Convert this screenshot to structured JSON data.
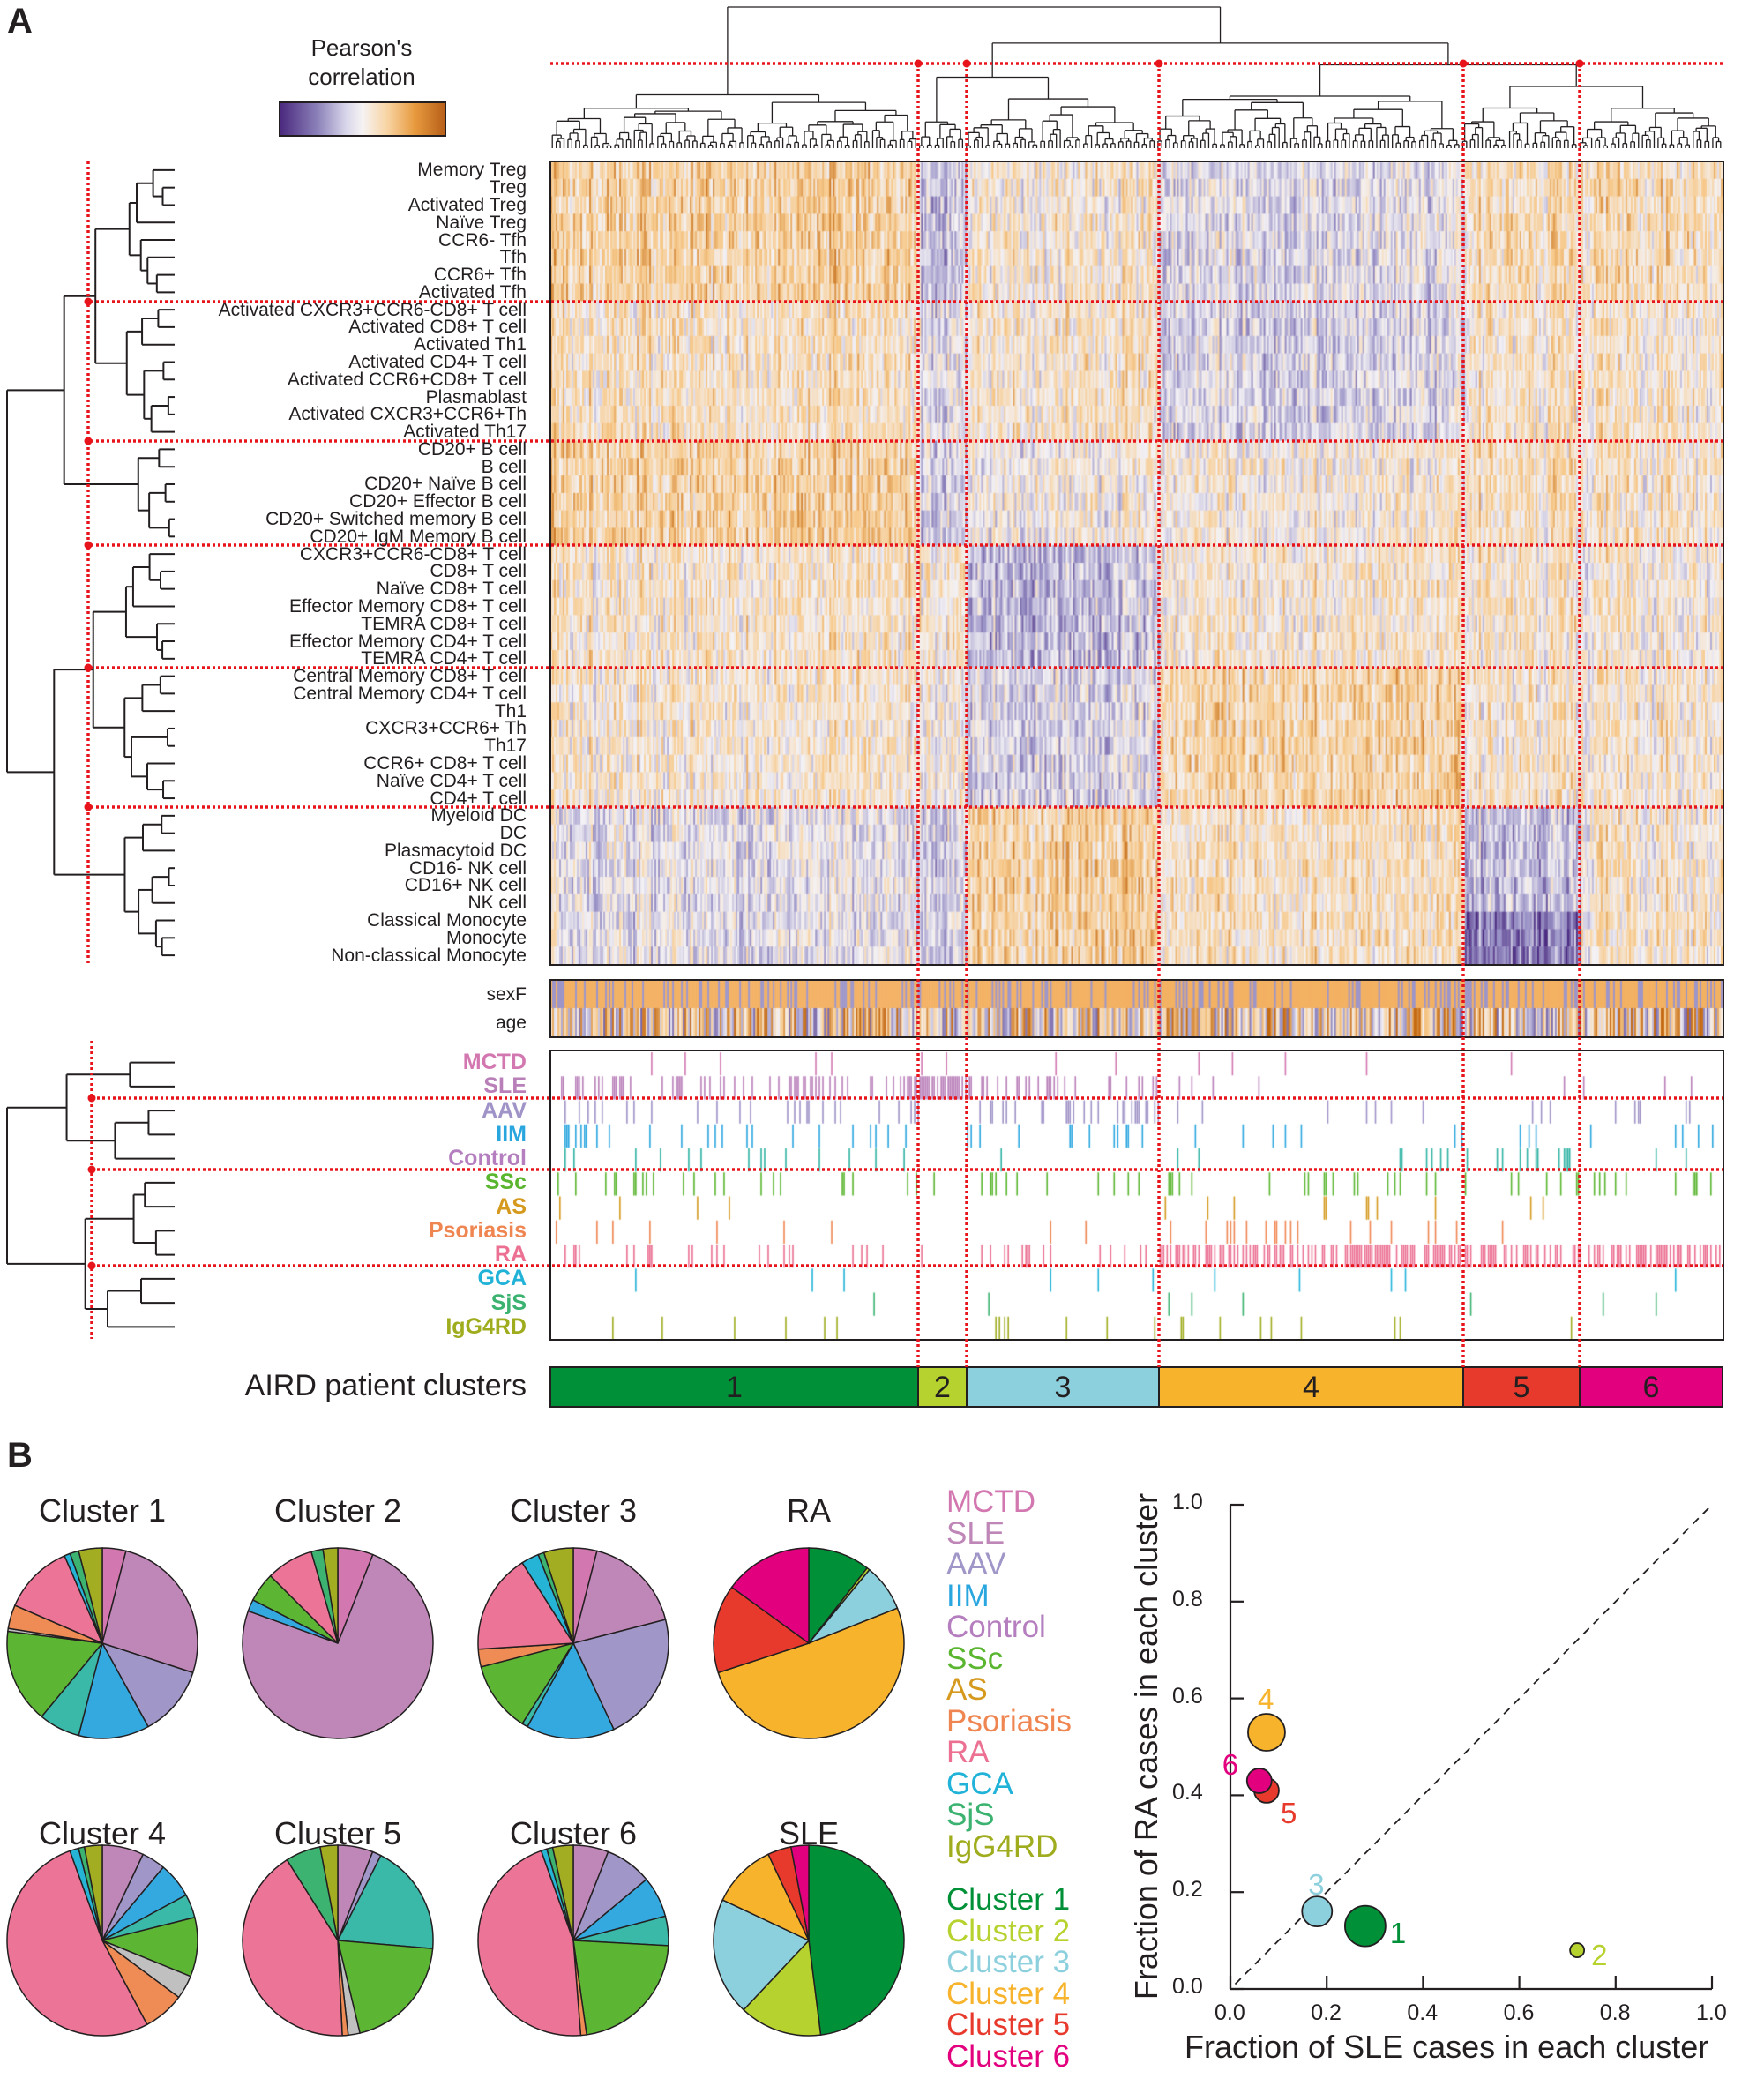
{
  "panel_a": {
    "letter": "A",
    "colorbar_title_line1": "Pearson's",
    "colorbar_title_line2": "correlation",
    "row_labels": [
      "Memory Treg",
      "Treg",
      "Activated Treg",
      "Naïve Treg",
      "CCR6- Tfh",
      "Tfh",
      "CCR6+ Tfh",
      "Activated Tfh",
      "Activated CXCR3+CCR6-CD8+ T cell",
      "Activated CD8+ T cell",
      "Activated Th1",
      "Activated CD4+ T cell",
      "Activated CCR6+CD8+ T cell",
      "Plasmablast",
      "Activated CXCR3+CCR6+Th",
      "Activated Th17",
      "CD20+ B cell",
      "B cell",
      "CD20+ Naïve B cell",
      "CD20+ Effector B cell",
      "CD20+ Switched memory B cell",
      "CD20+ IgM Memory B cell",
      "CXCR3+CCR6-CD8+ T cell",
      "CD8+ T cell",
      "Naïve CD8+ T cell",
      "Effector Memory CD8+ T cell",
      "TEMRA CD8+ T cell",
      "Effector Memory CD4+ T cell",
      "TEMRA CD4+ T cell",
      "Central Memory CD8+ T cell",
      "Central Memory CD4+ T cell",
      "Th1",
      "CXCR3+CCR6+ Th",
      "Th17",
      "CCR6+ CD8+ T cell",
      "Naïve CD4+ T cell",
      "CD4+ T cell",
      "Myeloid DC",
      "DC",
      "Plasmacytoid DC",
      "CD16- NK cell",
      "CD16+ NK cell",
      "NK cell",
      "Classical Monocyte",
      "Monocyte",
      "Non-classical Monocyte"
    ],
    "covariates": [
      "sexF",
      "age"
    ],
    "diseases": [
      {
        "label": "MCTD",
        "color": "#d277b0",
        "tick_color": "#d277b0"
      },
      {
        "label": "SLE",
        "color": "#b97fb9",
        "tick_color": "#b97fb9"
      },
      {
        "label": "AAV",
        "color": "#9f93c7",
        "tick_color": "#9f93c7"
      },
      {
        "label": "IIM",
        "color": "#2aa6df",
        "tick_color": "#2aa6df"
      },
      {
        "label": "Control",
        "color": "#b57fbf",
        "tick_color": "#2fb3a3"
      },
      {
        "label": "SSc",
        "color": "#5ab52f",
        "tick_color": "#5ab52f"
      },
      {
        "label": "AS",
        "color": "#d4991d",
        "tick_color": "#d4991d"
      },
      {
        "label": "Psoriasis",
        "color": "#ef8551",
        "tick_color": "#ef8551"
      },
      {
        "label": "RA",
        "color": "#eb7092",
        "tick_color": "#eb7092"
      },
      {
        "label": "GCA",
        "color": "#21b2d8",
        "tick_color": "#21b2d8"
      },
      {
        "label": "SjS",
        "color": "#3bb270",
        "tick_color": "#3bb270"
      },
      {
        "label": "IgG4RD",
        "color": "#9fac1e",
        "tick_color": "#9fac1e"
      }
    ],
    "cluster_bar_label": "AIRD patient clusters",
    "clusters": [
      {
        "label": "1",
        "color": "#009037"
      },
      {
        "label": "2",
        "color": "#b6d22e"
      },
      {
        "label": "3",
        "color": "#8dd0dd"
      },
      {
        "label": "4",
        "color": "#f7b32b"
      },
      {
        "label": "5",
        "color": "#e73a2c"
      },
      {
        "label": "6",
        "color": "#e2007e"
      }
    ],
    "cut_line_color": "#e8141b",
    "colorscale": [
      "#4b2a7f",
      "#9c95c8",
      "#f4f2f5",
      "#f7c98a",
      "#c46a14"
    ]
  },
  "panel_b": {
    "letter": "B",
    "pie_colors": [
      "#d277b0",
      "#bf86b8",
      "#a096c8",
      "#33a9e0",
      "#3ab8a8",
      "#5db534",
      "#c0c0c0",
      "#ef8c55",
      "#ec7597",
      "#26b4d6",
      "#3cb371",
      "#a3ad22"
    ],
    "legend_diseases": [
      {
        "label": "MCTD",
        "color": "#d277b0"
      },
      {
        "label": "SLE",
        "color": "#bf86b8"
      },
      {
        "label": "AAV",
        "color": "#a096c8"
      },
      {
        "label": "IIM",
        "color": "#2aa6df"
      },
      {
        "label": "Control",
        "color": "#b57fbf"
      },
      {
        "label": "SSc",
        "color": "#5ab52f"
      },
      {
        "label": "AS",
        "color": "#d4991d"
      },
      {
        "label": "Psoriasis",
        "color": "#ef8551"
      },
      {
        "label": "RA",
        "color": "#eb7092"
      },
      {
        "label": "GCA",
        "color": "#21b2d8"
      },
      {
        "label": "SjS",
        "color": "#3bb270"
      },
      {
        "label": "IgG4RD",
        "color": "#9fac1e"
      }
    ],
    "legend_clusters": [
      {
        "label": "Cluster 1",
        "color": "#009037"
      },
      {
        "label": "Cluster 2",
        "color": "#b6d22e"
      },
      {
        "label": "Cluster 3",
        "color": "#8dd0dd"
      },
      {
        "label": "Cluster 4",
        "color": "#f7b32b"
      },
      {
        "label": "Cluster 5",
        "color": "#e73a2c"
      },
      {
        "label": "Cluster 6",
        "color": "#e2007e"
      }
    ]
  },
  "chart_data": [
    {
      "type": "pie",
      "slice_order": [
        "MCTD",
        "SLE",
        "AAV",
        "IIM",
        "Control",
        "SSc",
        "AS",
        "Psoriasis",
        "RA",
        "GCA",
        "SjS",
        "IgG4RD"
      ],
      "pies": [
        {
          "title": "Cluster 1",
          "values": [
            0.04,
            0.26,
            0.12,
            0.12,
            0.07,
            0.16,
            0.005,
            0.04,
            0.12,
            0.01,
            0.015,
            0.04
          ]
        },
        {
          "title": "Cluster 2",
          "values": [
            0.06,
            0.745,
            0,
            0.02,
            0,
            0.05,
            0,
            0,
            0.08,
            0,
            0.02,
            0.025
          ]
        },
        {
          "title": "Cluster 3",
          "values": [
            0.04,
            0.17,
            0.22,
            0.15,
            0.01,
            0.12,
            0,
            0.03,
            0.17,
            0.03,
            0.01,
            0.05
          ]
        },
        {
          "title": "Cluster 4",
          "values": [
            0,
            0.07,
            0.04,
            0.06,
            0.04,
            0.1,
            0.04,
            0.07,
            0.52,
            0.015,
            0.01,
            0.03
          ]
        },
        {
          "title": "Cluster 5",
          "values": [
            0,
            0.06,
            0.015,
            0,
            0.19,
            0.2,
            0.02,
            0.01,
            0.42,
            0,
            0.06,
            0.03
          ]
        },
        {
          "title": "Cluster 6",
          "values": [
            0,
            0.06,
            0.08,
            0.07,
            0.05,
            0.22,
            0,
            0.01,
            0.46,
            0.01,
            0.01,
            0.035
          ]
        }
      ]
    },
    {
      "type": "pie",
      "slice_order": [
        "Cluster 1",
        "Cluster 2",
        "Cluster 3",
        "Cluster 4",
        "Cluster 5",
        "Cluster 6"
      ],
      "pies": [
        {
          "title": "RA",
          "values": [
            0.105,
            0.005,
            0.08,
            0.51,
            0.15,
            0.15
          ]
        },
        {
          "title": "SLE",
          "values": [
            0.48,
            0.14,
            0.2,
            0.11,
            0.04,
            0.03
          ]
        }
      ]
    },
    {
      "type": "scatter",
      "xlabel": "Fraction of SLE cases in each cluster",
      "ylabel": "Fraction of RA cases in each cluster",
      "xlim": [
        0,
        1
      ],
      "ylim": [
        0,
        1
      ],
      "xticks": [
        "0.0",
        "0.2",
        "0.4",
        "0.6",
        "0.8",
        "1.0"
      ],
      "yticks": [
        "0.0",
        "0.2",
        "0.4",
        "0.6",
        "0.8",
        "1.0"
      ],
      "reference_line": "y = x (dashed)",
      "points": [
        {
          "label": "1",
          "x": 0.28,
          "y": 0.13
        },
        {
          "label": "2",
          "x": 0.72,
          "y": 0.08
        },
        {
          "label": "3",
          "x": 0.18,
          "y": 0.16
        },
        {
          "label": "4",
          "x": 0.075,
          "y": 0.53
        },
        {
          "label": "5",
          "x": 0.075,
          "y": 0.41
        },
        {
          "label": "6",
          "x": 0.06,
          "y": 0.43
        }
      ],
      "grid": false
    }
  ]
}
